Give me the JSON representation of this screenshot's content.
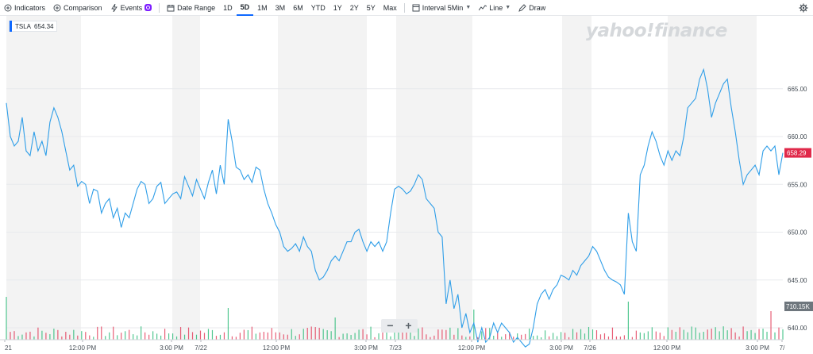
{
  "toolbar": {
    "indicators": "Indicators",
    "comparison": "Comparison",
    "events": "Events",
    "date_range": "Date Range",
    "ranges": [
      "1D",
      "5D",
      "1M",
      "3M",
      "6M",
      "YTD",
      "1Y",
      "2Y",
      "5Y",
      "Max"
    ],
    "active_range": "5D",
    "interval": "Interval",
    "interval_value": "5Min",
    "chart_type": "Line",
    "draw": "Draw"
  },
  "legend": {
    "symbol": "TSLA",
    "value": "654.34"
  },
  "watermark": "yahoo!finance",
  "zoom": {
    "out": "−",
    "in": "+"
  },
  "colors": {
    "line": "#2f9ee8",
    "price_tag": "#e0294a",
    "up": "#18b46c",
    "down": "#e0294a",
    "active_tab": "#0f69ff"
  },
  "chart_data": {
    "type": "line",
    "title": "",
    "xlabel": "",
    "ylabel": "",
    "ylim": [
      636.5,
      668.5
    ],
    "grid": true,
    "y_ticks": [
      "665.00",
      "660.00",
      "655.00",
      "650.00",
      "645.00",
      "640.00"
    ],
    "x_ticks": [
      "21",
      "12:00 PM",
      "3:00 PM",
      "7/22",
      "12:00 PM",
      "3:00 PM",
      "7/23",
      "12:00 PM",
      "3:00 PM",
      "7/26",
      "12:00 PM",
      "3:00 PM",
      "7/"
    ],
    "last_price_tag": "658.29",
    "volume_tag": "710.15K",
    "series": [
      {
        "values": [
          663.5,
          660.0,
          659.0,
          659.5,
          662.0,
          658.5,
          658.0,
          660.5,
          658.5,
          659.5,
          658.0,
          661.5,
          663.0,
          662.0,
          660.5,
          658.5,
          656.5,
          657.0,
          654.8,
          655.3,
          655.0,
          653.0,
          654.5,
          654.3,
          652.0,
          653.0,
          653.5,
          651.5,
          652.5,
          650.5,
          652.0,
          651.5,
          653.0,
          654.5,
          655.3,
          655.0,
          653.0,
          653.5,
          654.8,
          655.2,
          653.0,
          653.5,
          654.0,
          654.2,
          653.5,
          655.8,
          654.8,
          653.8,
          655.5,
          654.5,
          653.5,
          655.2,
          656.5,
          654.0,
          657.0,
          655.0,
          661.8,
          659.5,
          656.8,
          656.5,
          655.5,
          656.0,
          655.2,
          656.8,
          656.5,
          654.5,
          653.0,
          652.0,
          650.8,
          650.0,
          648.5,
          648.0,
          648.3,
          648.8,
          648.0,
          649.5,
          648.5,
          648.0,
          646.0,
          645.0,
          645.3,
          646.0,
          647.0,
          647.5,
          647.0,
          648.0,
          649.0,
          649.0,
          650.0,
          650.3,
          649.0,
          648.0,
          649.0,
          648.5,
          649.0,
          648.0,
          649.0,
          652.0,
          654.5,
          654.8,
          654.5,
          654.0,
          654.3,
          655.0,
          656.0,
          655.5,
          653.5,
          653.0,
          652.5,
          650.0,
          649.5,
          642.5,
          645.0,
          642.0,
          643.5,
          640.0,
          641.5,
          639.5,
          640.5,
          638.5,
          640.0,
          638.5,
          639.0,
          640.5,
          639.5,
          640.5,
          640.0,
          639.5,
          638.5,
          639.0,
          638.5,
          638.0,
          638.3,
          640.0,
          642.5,
          643.5,
          644.0,
          643.0,
          644.0,
          644.5,
          645.5,
          645.3,
          645.0,
          646.0,
          645.5,
          646.5,
          647.0,
          647.5,
          648.5,
          648.0,
          647.0,
          646.0,
          645.3,
          645.0,
          644.8,
          644.5,
          643.5,
          652.0,
          649.0,
          648.0,
          656.0,
          657.0,
          659.0,
          660.5,
          659.5,
          658.0,
          657.0,
          658.5,
          657.5,
          658.5,
          658.0,
          660.0,
          663.0,
          663.5,
          664.0,
          666.0,
          667.0,
          665.0,
          662.0,
          663.5,
          664.5,
          665.5,
          666.0,
          663.0,
          660.5,
          657.5,
          655.0,
          656.0,
          656.5,
          657.0,
          656.0,
          658.5,
          659.0,
          658.5,
          659.0,
          656.0,
          658.29
        ]
      }
    ],
    "volume_bars": "intraday volume histogram (not individually labeled)"
  }
}
